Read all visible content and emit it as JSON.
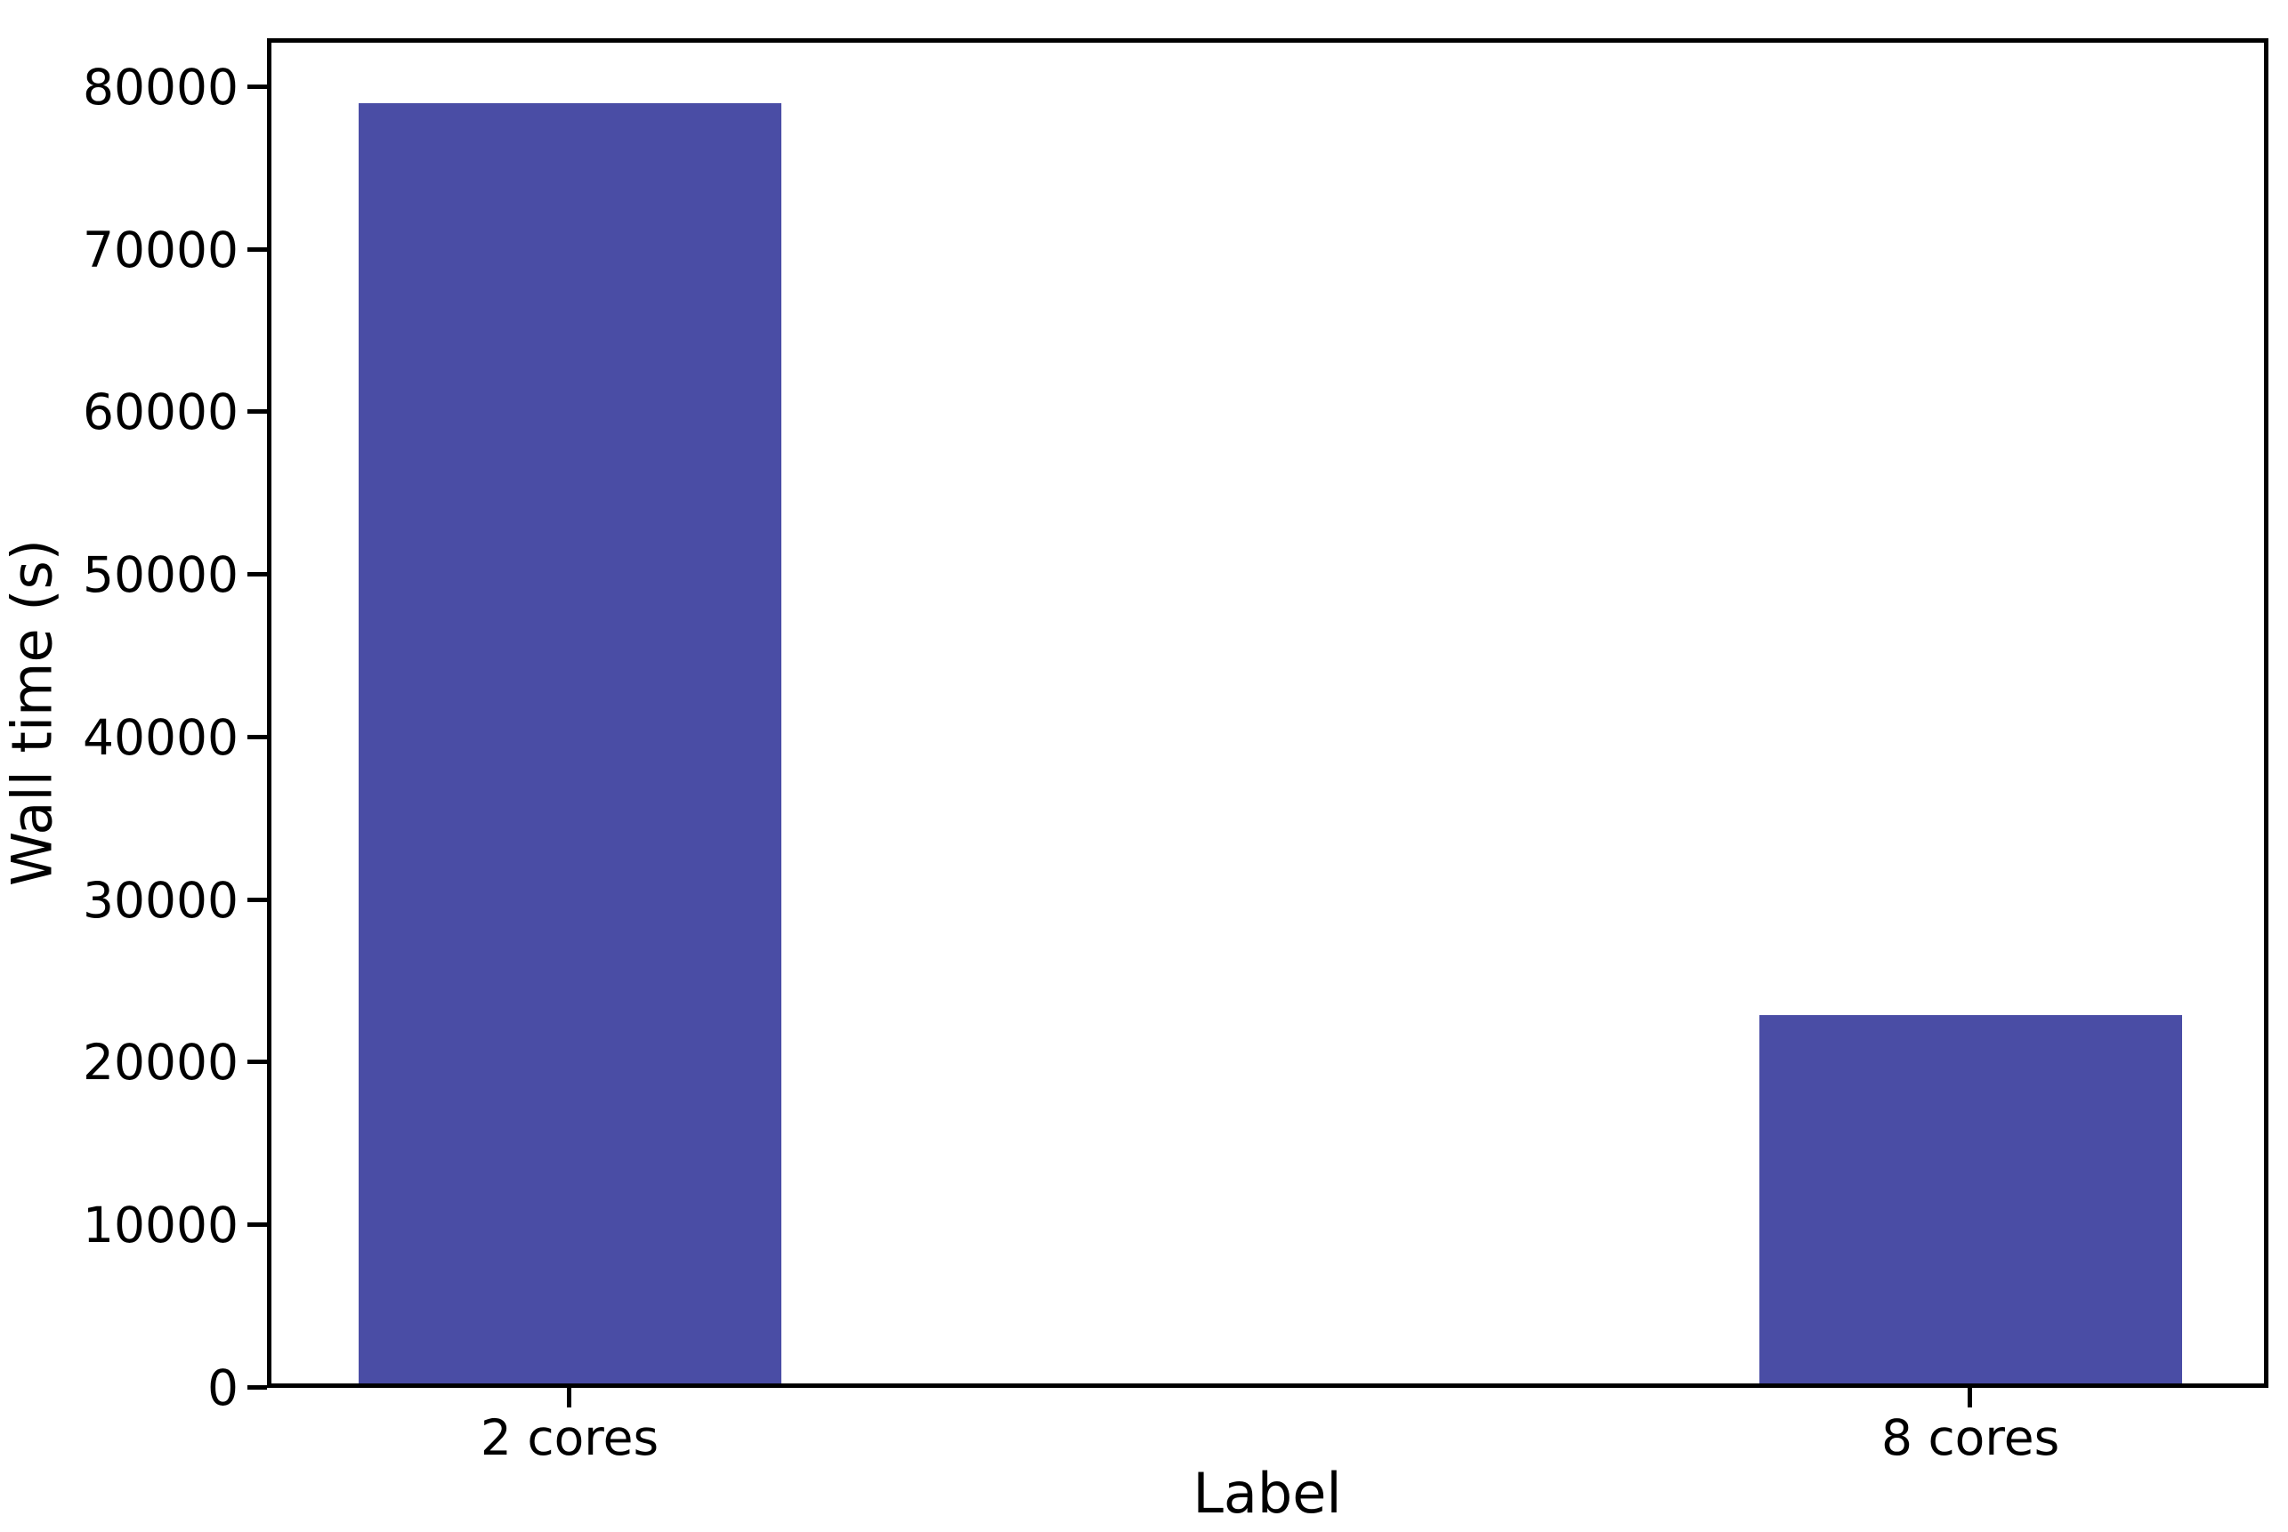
{
  "figure": {
    "background": "#ffffff",
    "spine_color": "#000000",
    "text_color": "#000000"
  },
  "chart_data": {
    "type": "bar",
    "categories": [
      "2 cores",
      "8 cores"
    ],
    "values": [
      79000,
      22900
    ],
    "xlabel": "Label",
    "ylabel": "Wall time (s)",
    "ylim": [
      0,
      83000
    ],
    "yticks": [
      0,
      10000,
      20000,
      30000,
      40000,
      50000,
      60000,
      70000,
      80000
    ],
    "bar_color": "#4A4DA5",
    "grid": false,
    "legend": false
  }
}
